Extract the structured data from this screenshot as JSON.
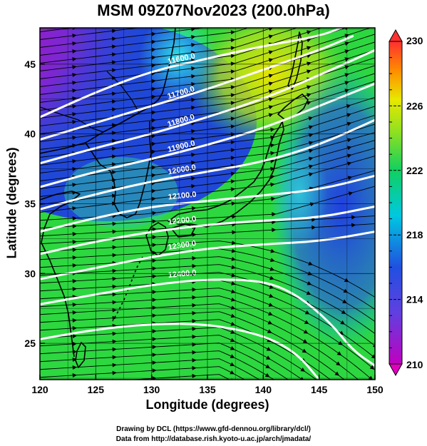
{
  "title": "MSM 09Z07Nov2023 (200.0hPa)",
  "xlabel": "Longitude (degrees)",
  "ylabel": "Latitude  (degrees)",
  "x_ticks": [
    "120",
    "125",
    "130",
    "135",
    "140",
    "145",
    "150"
  ],
  "y_ticks": [
    "45",
    "40",
    "35",
    "30",
    "25"
  ],
  "colorbar": {
    "ticks": [
      "230",
      "226",
      "222",
      "218",
      "214",
      "210"
    ],
    "min": 210,
    "max": 230,
    "colors": [
      "#c000c0",
      "#4050d8",
      "#00c8e0",
      "#10d060",
      "#d8e800",
      "#ff8c00",
      "#ff3030"
    ]
  },
  "contour_labels": [
    "11600.0",
    "11700.0",
    "11800.0",
    "11900.0",
    "12000.0",
    "12100.0",
    "12200.0",
    "12300.0",
    "12400.0"
  ],
  "credits": {
    "line1": "Drawing by DCL (https://www.gfd-dennou.org/library/dcl/)",
    "line2": "Data from http://database.rish.kyoto-u.ac.jp/arch/jmadata/"
  },
  "chart_data": {
    "type": "map",
    "title": "MSM 09Z07Nov2023 (200.0hPa)",
    "xlabel": "Longitude (degrees)",
    "ylabel": "Latitude  (degrees)",
    "xlim": [
      120,
      150
    ],
    "ylim": [
      22.4,
      47.6
    ],
    "fill_variable_range": [
      210,
      230
    ],
    "contours": [
      {
        "label": "11600.0",
        "points": [
          [
            120,
            41.2
          ],
          [
            125,
            43.0
          ],
          [
            130,
            44.5
          ],
          [
            135,
            45.4
          ],
          [
            140,
            46.3
          ],
          [
            145,
            47.0
          ],
          [
            147,
            47.6
          ]
        ]
      },
      {
        "label": "11700.0",
        "points": [
          [
            120,
            39.6
          ],
          [
            125,
            40.8
          ],
          [
            130,
            42.0
          ],
          [
            135,
            43.2
          ],
          [
            140,
            44.6
          ],
          [
            145,
            46.0
          ],
          [
            148,
            47.0
          ]
        ]
      },
      {
        "label": "11800.0",
        "points": [
          [
            120,
            37.9
          ],
          [
            125,
            39.0
          ],
          [
            130,
            40.0
          ],
          [
            135,
            41.2
          ],
          [
            140,
            42.5
          ],
          [
            145,
            44.2
          ],
          [
            150,
            46.0
          ]
        ]
      },
      {
        "label": "11900.0",
        "points": [
          [
            120,
            36.2
          ],
          [
            125,
            37.3
          ],
          [
            130,
            38.2
          ],
          [
            135,
            39.2
          ],
          [
            140,
            40.4
          ],
          [
            145,
            42.0
          ],
          [
            150,
            43.6
          ]
        ]
      },
      {
        "label": "12000.0",
        "points": [
          [
            120,
            34.6
          ],
          [
            125,
            35.7
          ],
          [
            130,
            36.6
          ],
          [
            135,
            37.3
          ],
          [
            140,
            38.0
          ],
          [
            145,
            39.2
          ],
          [
            150,
            41.0
          ]
        ]
      },
      {
        "label": "12100.0",
        "points": [
          [
            120,
            33.0
          ],
          [
            125,
            34.0
          ],
          [
            130,
            34.8
          ],
          [
            135,
            35.2
          ],
          [
            140,
            35.6
          ],
          [
            145,
            36.0
          ],
          [
            150,
            37.0
          ]
        ]
      },
      {
        "label": "12200.0",
        "points": [
          [
            120,
            31.4
          ],
          [
            125,
            32.3
          ],
          [
            130,
            33.0
          ],
          [
            135,
            33.5
          ],
          [
            140,
            33.8
          ],
          [
            145,
            34.0
          ],
          [
            150,
            34.8
          ]
        ]
      },
      {
        "label": "12300.0",
        "points": [
          [
            120,
            29.6
          ],
          [
            125,
            30.4
          ],
          [
            130,
            31.2
          ],
          [
            135,
            31.8
          ],
          [
            140,
            32.1
          ],
          [
            145,
            32.3
          ],
          [
            150,
            33.0
          ]
        ]
      },
      {
        "label": "12400.0",
        "points": [
          [
            120,
            27.8
          ],
          [
            125,
            28.5
          ],
          [
            130,
            29.2
          ],
          [
            135,
            29.6
          ],
          [
            140,
            29.5
          ],
          [
            143,
            28.5
          ],
          [
            146,
            26.5
          ],
          [
            148,
            24.5
          ],
          [
            150,
            23.4
          ]
        ]
      },
      {
        "label": "",
        "points": [
          [
            120,
            25.3
          ],
          [
            125,
            26.0
          ],
          [
            130,
            26.4
          ],
          [
            135,
            26.4
          ],
          [
            140,
            25.6
          ],
          [
            143,
            24.3
          ],
          [
            145,
            22.4
          ]
        ]
      }
    ]
  }
}
